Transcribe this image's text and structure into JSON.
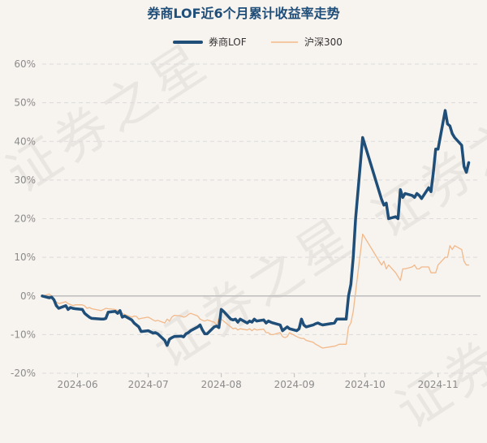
{
  "chart_data": {
    "type": "line",
    "title": "券商LOF近6个月累计收益率走势",
    "xlabel": "",
    "ylabel": "",
    "ylim": [
      -20,
      60
    ],
    "yticks": [
      -20,
      -10,
      0,
      10,
      20,
      30,
      40,
      50,
      60
    ],
    "ytick_labels": [
      "-20%",
      "-10%",
      "0%",
      "10%",
      "20%",
      "30%",
      "40%",
      "50%",
      "60%"
    ],
    "xticks": [
      {
        "label": "2024-06",
        "date": "2024-06-01"
      },
      {
        "label": "2024-07",
        "date": "2024-07-01"
      },
      {
        "label": "2024-08",
        "date": "2024-08-01"
      },
      {
        "label": "2024-09",
        "date": "2024-09-01"
      },
      {
        "label": "2024-10",
        "date": "2024-10-01"
      },
      {
        "label": "2024-11",
        "date": "2024-11-01"
      }
    ],
    "xlim": [
      "2024-05-17",
      "2024-11-19"
    ],
    "grid": "horizontal dashed",
    "legend_position": "top-center",
    "watermark": "证券之星",
    "series": [
      {
        "name": "券商LOF",
        "color": "#1f4e79",
        "points": [
          [
            "2024-05-17",
            0
          ],
          [
            "2024-05-20",
            -0.5
          ],
          [
            "2024-05-21",
            -0.3
          ],
          [
            "2024-05-22",
            -1
          ],
          [
            "2024-05-23",
            -2.5
          ],
          [
            "2024-05-24",
            -3.2
          ],
          [
            "2024-05-27",
            -2.5
          ],
          [
            "2024-05-28",
            -3.5
          ],
          [
            "2024-05-29",
            -3
          ],
          [
            "2024-05-30",
            -3.2
          ],
          [
            "2024-05-31",
            -3.3
          ],
          [
            "2024-06-03",
            -3.5
          ],
          [
            "2024-06-04",
            -4.5
          ],
          [
            "2024-06-05",
            -5
          ],
          [
            "2024-06-06",
            -5.5
          ],
          [
            "2024-06-07",
            -5.8
          ],
          [
            "2024-06-11",
            -6
          ],
          [
            "2024-06-12",
            -6
          ],
          [
            "2024-06-13",
            -5.8
          ],
          [
            "2024-06-14",
            -4.2
          ],
          [
            "2024-06-17",
            -4
          ],
          [
            "2024-06-18",
            -4.5
          ],
          [
            "2024-06-19",
            -3.8
          ],
          [
            "2024-06-20",
            -5.5
          ],
          [
            "2024-06-21",
            -5.2
          ],
          [
            "2024-06-24",
            -6.2
          ],
          [
            "2024-06-25",
            -7
          ],
          [
            "2024-06-26",
            -7.5
          ],
          [
            "2024-06-27",
            -8
          ],
          [
            "2024-06-28",
            -9.2
          ],
          [
            "2024-07-01",
            -9
          ],
          [
            "2024-07-02",
            -9.3
          ],
          [
            "2024-07-03",
            -9.6
          ],
          [
            "2024-07-04",
            -9.5
          ],
          [
            "2024-07-05",
            -9.8
          ],
          [
            "2024-07-08",
            -11.5
          ],
          [
            "2024-07-09",
            -12.8
          ],
          [
            "2024-07-10",
            -11.2
          ],
          [
            "2024-07-11",
            -10.8
          ],
          [
            "2024-07-12",
            -10.5
          ],
          [
            "2024-07-15",
            -10.4
          ],
          [
            "2024-07-16",
            -10.6
          ],
          [
            "2024-07-17",
            -9.8
          ],
          [
            "2024-07-18",
            -9.5
          ],
          [
            "2024-07-19",
            -9
          ],
          [
            "2024-07-22",
            -8
          ],
          [
            "2024-07-23",
            -7.5
          ],
          [
            "2024-07-24",
            -8.8
          ],
          [
            "2024-07-25",
            -9.8
          ],
          [
            "2024-07-26",
            -9.8
          ],
          [
            "2024-07-29",
            -8
          ],
          [
            "2024-07-30",
            -7.8
          ],
          [
            "2024-07-31",
            -8.2
          ],
          [
            "2024-08-01",
            -3.5
          ],
          [
            "2024-08-02",
            -4
          ],
          [
            "2024-08-05",
            -6
          ],
          [
            "2024-08-06",
            -6.2
          ],
          [
            "2024-08-07",
            -6
          ],
          [
            "2024-08-08",
            -6.8
          ],
          [
            "2024-08-09",
            -6
          ],
          [
            "2024-08-12",
            -7
          ],
          [
            "2024-08-13",
            -6.5
          ],
          [
            "2024-08-14",
            -6.8
          ],
          [
            "2024-08-15",
            -6
          ],
          [
            "2024-08-16",
            -6.5
          ],
          [
            "2024-08-19",
            -6.2
          ],
          [
            "2024-08-20",
            -7
          ],
          [
            "2024-08-21",
            -6.5
          ],
          [
            "2024-08-22",
            -6.8
          ],
          [
            "2024-08-23",
            -7
          ],
          [
            "2024-08-26",
            -7.5
          ],
          [
            "2024-08-27",
            -9
          ],
          [
            "2024-08-28",
            -8.5
          ],
          [
            "2024-08-29",
            -8
          ],
          [
            "2024-08-30",
            -8.5
          ],
          [
            "2024-09-02",
            -9
          ],
          [
            "2024-09-03",
            -8.5
          ],
          [
            "2024-09-04",
            -6
          ],
          [
            "2024-09-05",
            -7.5
          ],
          [
            "2024-09-06",
            -8
          ],
          [
            "2024-09-09",
            -7.5
          ],
          [
            "2024-09-10",
            -7.2
          ],
          [
            "2024-09-11",
            -7
          ],
          [
            "2024-09-12",
            -7.3
          ],
          [
            "2024-09-13",
            -7.5
          ],
          [
            "2024-09-18",
            -7
          ],
          [
            "2024-09-19",
            -6
          ],
          [
            "2024-09-20",
            -6
          ],
          [
            "2024-09-23",
            -6
          ],
          [
            "2024-09-24",
            0
          ],
          [
            "2024-09-25",
            3
          ],
          [
            "2024-09-26",
            10
          ],
          [
            "2024-09-27",
            20
          ],
          [
            "2024-09-30",
            41
          ],
          [
            "2024-10-08",
            25
          ],
          [
            "2024-10-09",
            23.5
          ],
          [
            "2024-10-10",
            24
          ],
          [
            "2024-10-11",
            20
          ],
          [
            "2024-10-14",
            20.5
          ],
          [
            "2024-10-15",
            20
          ],
          [
            "2024-10-16",
            27.5
          ],
          [
            "2024-10-17",
            25.5
          ],
          [
            "2024-10-18",
            26.5
          ],
          [
            "2024-10-21",
            26
          ],
          [
            "2024-10-22",
            25.5
          ],
          [
            "2024-10-23",
            26.5
          ],
          [
            "2024-10-24",
            26
          ],
          [
            "2024-10-25",
            25.2
          ],
          [
            "2024-10-28",
            28
          ],
          [
            "2024-10-29",
            27
          ],
          [
            "2024-10-30",
            32
          ],
          [
            "2024-10-31",
            38
          ],
          [
            "2024-11-01",
            38
          ],
          [
            "2024-11-04",
            48
          ],
          [
            "2024-11-05",
            44.5
          ],
          [
            "2024-11-06",
            44
          ],
          [
            "2024-11-07",
            42
          ],
          [
            "2024-11-08",
            41
          ],
          [
            "2024-11-11",
            39
          ],
          [
            "2024-11-12",
            33.5
          ],
          [
            "2024-11-13",
            32
          ],
          [
            "2024-11-14",
            34.5
          ]
        ]
      },
      {
        "name": "沪深300",
        "color": "#f2b98a",
        "points": [
          [
            "2024-05-17",
            0
          ],
          [
            "2024-05-20",
            0.5
          ],
          [
            "2024-05-21",
            0
          ],
          [
            "2024-05-22",
            -1
          ],
          [
            "2024-05-23",
            -1.5
          ],
          [
            "2024-05-24",
            -2
          ],
          [
            "2024-05-27",
            -1.5
          ],
          [
            "2024-05-28",
            -2
          ],
          [
            "2024-05-29",
            -2.2
          ],
          [
            "2024-05-30",
            -2.5
          ],
          [
            "2024-05-31",
            -2.3
          ],
          [
            "2024-06-03",
            -2.3
          ],
          [
            "2024-06-04",
            -2.6
          ],
          [
            "2024-06-05",
            -3.2
          ],
          [
            "2024-06-06",
            -3
          ],
          [
            "2024-06-07",
            -3.3
          ],
          [
            "2024-06-11",
            -3.8
          ],
          [
            "2024-06-12",
            -3.5
          ],
          [
            "2024-06-13",
            -3.2
          ],
          [
            "2024-06-14",
            -3.3
          ],
          [
            "2024-06-17",
            -3.5
          ],
          [
            "2024-06-18",
            -3.8
          ],
          [
            "2024-06-19",
            -4
          ],
          [
            "2024-06-20",
            -4.5
          ],
          [
            "2024-06-21",
            -4.8
          ],
          [
            "2024-06-24",
            -5.5
          ],
          [
            "2024-06-25",
            -5.2
          ],
          [
            "2024-06-26",
            -5.3
          ],
          [
            "2024-06-27",
            -6
          ],
          [
            "2024-06-28",
            -5.8
          ],
          [
            "2024-07-01",
            -5.5
          ],
          [
            "2024-07-02",
            -5.8
          ],
          [
            "2024-07-03",
            -6.2
          ],
          [
            "2024-07-04",
            -6.5
          ],
          [
            "2024-07-05",
            -6.3
          ],
          [
            "2024-07-08",
            -7
          ],
          [
            "2024-07-09",
            -6
          ],
          [
            "2024-07-10",
            -6.5
          ],
          [
            "2024-07-11",
            -5.5
          ],
          [
            "2024-07-12",
            -5
          ],
          [
            "2024-07-15",
            -5.2
          ],
          [
            "2024-07-16",
            -5.5
          ],
          [
            "2024-07-17",
            -5.3
          ],
          [
            "2024-07-18",
            -4.8
          ],
          [
            "2024-07-19",
            -4.5
          ],
          [
            "2024-07-22",
            -5.2
          ],
          [
            "2024-07-23",
            -6
          ],
          [
            "2024-07-24",
            -6.3
          ],
          [
            "2024-07-25",
            -6.5
          ],
          [
            "2024-07-26",
            -6.2
          ],
          [
            "2024-07-29",
            -6.8
          ],
          [
            "2024-07-30",
            -7.5
          ],
          [
            "2024-07-31",
            -5.8
          ],
          [
            "2024-08-01",
            -6
          ],
          [
            "2024-08-02",
            -6.5
          ],
          [
            "2024-08-05",
            -8
          ],
          [
            "2024-08-06",
            -8.5
          ],
          [
            "2024-08-07",
            -8.3
          ],
          [
            "2024-08-08",
            -8.8
          ],
          [
            "2024-08-09",
            -8.5
          ],
          [
            "2024-08-12",
            -8.8
          ],
          [
            "2024-08-13",
            -8.5
          ],
          [
            "2024-08-14",
            -9
          ],
          [
            "2024-08-15",
            -8.5
          ],
          [
            "2024-08-16",
            -8.8
          ],
          [
            "2024-08-19",
            -8.6
          ],
          [
            "2024-08-20",
            -9.5
          ],
          [
            "2024-08-21",
            -9.5
          ],
          [
            "2024-08-22",
            -10
          ],
          [
            "2024-08-23",
            -10
          ],
          [
            "2024-08-26",
            -9.5
          ],
          [
            "2024-08-27",
            -10.5
          ],
          [
            "2024-08-28",
            -10.8
          ],
          [
            "2024-08-29",
            -10.5
          ],
          [
            "2024-08-30",
            -9.5
          ],
          [
            "2024-09-02",
            -10.5
          ],
          [
            "2024-09-03",
            -10.8
          ],
          [
            "2024-09-04",
            -11
          ],
          [
            "2024-09-05",
            -11
          ],
          [
            "2024-09-06",
            -11.5
          ],
          [
            "2024-09-09",
            -12
          ],
          [
            "2024-09-10",
            -12.5
          ],
          [
            "2024-09-11",
            -12.8
          ],
          [
            "2024-09-12",
            -13.2
          ],
          [
            "2024-09-13",
            -13.5
          ],
          [
            "2024-09-18",
            -13
          ],
          [
            "2024-09-19",
            -12.8
          ],
          [
            "2024-09-20",
            -12.5
          ],
          [
            "2024-09-23",
            -12.5
          ],
          [
            "2024-09-24",
            -8
          ],
          [
            "2024-09-25",
            -7
          ],
          [
            "2024-09-26",
            -4
          ],
          [
            "2024-09-27",
            1
          ],
          [
            "2024-09-30",
            16
          ],
          [
            "2024-10-08",
            8
          ],
          [
            "2024-10-09",
            9
          ],
          [
            "2024-10-10",
            7
          ],
          [
            "2024-10-11",
            8
          ],
          [
            "2024-10-14",
            6
          ],
          [
            "2024-10-15",
            5
          ],
          [
            "2024-10-16",
            4
          ],
          [
            "2024-10-17",
            7
          ],
          [
            "2024-10-18",
            7
          ],
          [
            "2024-10-21",
            7.5
          ],
          [
            "2024-10-22",
            8
          ],
          [
            "2024-10-23",
            7
          ],
          [
            "2024-10-24",
            7
          ],
          [
            "2024-10-25",
            7.5
          ],
          [
            "2024-10-28",
            7.5
          ],
          [
            "2024-10-29",
            6
          ],
          [
            "2024-10-30",
            6
          ],
          [
            "2024-10-31",
            6
          ],
          [
            "2024-11-01",
            8
          ],
          [
            "2024-11-04",
            10
          ],
          [
            "2024-11-05",
            10
          ],
          [
            "2024-11-06",
            13
          ],
          [
            "2024-11-07",
            12
          ],
          [
            "2024-11-08",
            13
          ],
          [
            "2024-11-11",
            12
          ],
          [
            "2024-11-12",
            9
          ],
          [
            "2024-11-13",
            8
          ],
          [
            "2024-11-14",
            8
          ]
        ]
      }
    ]
  }
}
